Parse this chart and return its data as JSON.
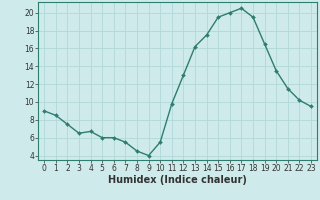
{
  "x": [
    0,
    1,
    2,
    3,
    4,
    5,
    6,
    7,
    8,
    9,
    10,
    11,
    12,
    13,
    14,
    15,
    16,
    17,
    18,
    19,
    20,
    21,
    22,
    23
  ],
  "y": [
    9.0,
    8.5,
    7.5,
    6.5,
    6.7,
    6.0,
    6.0,
    5.5,
    4.5,
    4.0,
    5.5,
    9.8,
    13.0,
    16.2,
    17.5,
    19.5,
    20.0,
    20.5,
    19.5,
    16.5,
    13.5,
    11.5,
    10.2,
    9.5
  ],
  "line_color": "#2e7d6e",
  "marker": "D",
  "markersize": 2.0,
  "linewidth": 1.0,
  "bg_color": "#ceeaea",
  "grid_color": "#b0d8d8",
  "xlabel": "Humidex (Indice chaleur)",
  "ylabel": "",
  "xlim": [
    -0.5,
    23.5
  ],
  "ylim": [
    3.5,
    21.2
  ],
  "yticks": [
    4,
    6,
    8,
    10,
    12,
    14,
    16,
    18,
    20
  ],
  "xticks": [
    0,
    1,
    2,
    3,
    4,
    5,
    6,
    7,
    8,
    9,
    10,
    11,
    12,
    13,
    14,
    15,
    16,
    17,
    18,
    19,
    20,
    21,
    22,
    23
  ],
  "tick_fontsize": 5.5,
  "xlabel_fontsize": 7.0
}
